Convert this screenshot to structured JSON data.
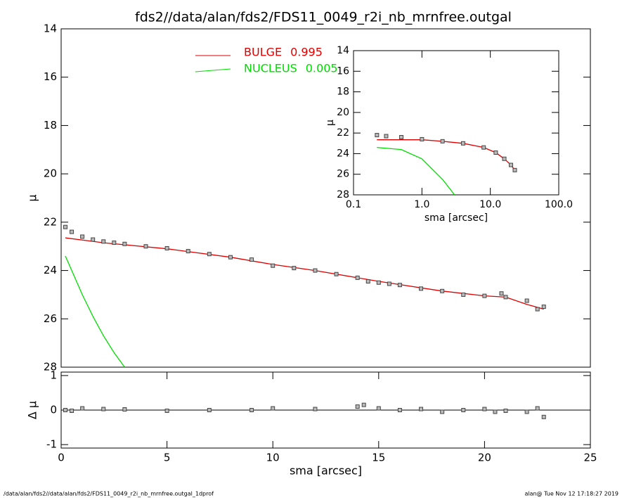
{
  "chart_data": [
    {
      "type": "line",
      "title": "fds2//data/alan/fds2/FDS11_0049_r2i_nb_mrnfree.outgal",
      "y_label": "μ",
      "xlim": [
        0,
        25
      ],
      "ylim": [
        28,
        14
      ],
      "yticks": [
        14,
        16,
        18,
        20,
        22,
        24,
        26,
        28
      ],
      "series": [
        {
          "name": "BULGE",
          "fraction": 0.995,
          "fraction_label": "0.995",
          "color": "#e00000",
          "style": "line",
          "x": [
            0.2,
            2,
            5,
            8,
            10,
            12,
            15,
            18,
            20,
            21,
            22,
            22.8
          ],
          "values": [
            22.65,
            22.85,
            23.1,
            23.45,
            23.75,
            24.0,
            24.45,
            24.85,
            25.05,
            25.1,
            25.4,
            25.6
          ]
        },
        {
          "name": "NUCLEUS",
          "fraction": 0.005,
          "fraction_label": "0.005",
          "color": "#00dd00",
          "style": "line",
          "x": [
            0.2,
            0.5,
            1,
            1.5,
            2,
            2.5,
            3
          ],
          "values": [
            23.4,
            24.0,
            25.0,
            25.9,
            26.7,
            27.4,
            28.0
          ]
        },
        {
          "color": "#444444",
          "style": "markers",
          "x": [
            0.2,
            0.5,
            1,
            1.5,
            2,
            2.5,
            3,
            4,
            5,
            6,
            7,
            8,
            9,
            10,
            11,
            12,
            13,
            14,
            14.5,
            15,
            15.5,
            16,
            17,
            18,
            19,
            20,
            20.8,
            21,
            22,
            22.5,
            22.8
          ],
          "values": [
            22.2,
            22.4,
            22.6,
            22.72,
            22.8,
            22.85,
            22.9,
            23.0,
            23.08,
            23.2,
            23.32,
            23.45,
            23.55,
            23.8,
            23.9,
            24.0,
            24.15,
            24.3,
            24.45,
            24.5,
            24.55,
            24.6,
            24.75,
            24.85,
            25.0,
            25.05,
            24.95,
            25.1,
            25.25,
            25.6,
            25.5
          ]
        }
      ]
    },
    {
      "type": "scatter",
      "x_label": "sma [arcsec]",
      "y_label": "Δ μ",
      "xlim": [
        0,
        25
      ],
      "xticks": [
        0,
        5,
        10,
        15,
        20,
        25
      ],
      "ylim": [
        -1.1,
        1.1
      ],
      "yticks": [
        -1,
        0,
        1
      ],
      "reference_line": 0,
      "series": [
        {
          "color": "#444444",
          "style": "markers",
          "x": [
            0.2,
            0.5,
            1,
            2,
            3,
            5,
            7,
            9,
            10,
            12,
            14,
            14.3,
            15,
            16,
            17,
            18,
            19,
            20,
            20.5,
            21,
            22,
            22.5,
            22.8
          ],
          "values": [
            0,
            -0.02,
            0.05,
            0.03,
            0.02,
            -0.02,
            0,
            0,
            0.05,
            0.03,
            0.1,
            0.15,
            0.05,
            0,
            0.03,
            -0.05,
            0,
            0.03,
            -0.05,
            -0.02,
            -0.05,
            0.05,
            -0.2
          ]
        }
      ]
    },
    {
      "type": "line",
      "x_label": "sma [arcsec]",
      "y_label": "μ",
      "xscale": "log",
      "xlim": [
        0.1,
        100
      ],
      "xticks": [
        0.1,
        {
          "value": 1,
          "label": "1.0"
        },
        {
          "value": 10,
          "label": "10.0"
        },
        {
          "value": 100,
          "label": "100.0"
        }
      ],
      "ylim": [
        28,
        14
      ],
      "yticks": [
        14,
        16,
        18,
        20,
        22,
        24,
        26,
        28
      ],
      "series": [
        {
          "color": "#e00000",
          "style": "line",
          "x": [
            0.22,
            1,
            2,
            4,
            8,
            12,
            16,
            20,
            22.8
          ],
          "values": [
            22.65,
            22.65,
            22.8,
            23.0,
            23.4,
            23.9,
            24.5,
            25.1,
            25.6
          ]
        },
        {
          "color": "#00dd00",
          "style": "line",
          "x": [
            0.22,
            0.5,
            1,
            2,
            3
          ],
          "values": [
            23.4,
            23.6,
            24.5,
            26.5,
            28.0
          ]
        },
        {
          "color": "#444444",
          "style": "markers",
          "x": [
            0.22,
            0.3,
            0.5,
            1,
            2,
            4,
            8,
            12,
            16,
            20,
            22.8
          ],
          "values": [
            22.2,
            22.3,
            22.4,
            22.6,
            22.8,
            23.0,
            23.4,
            23.9,
            24.5,
            25.1,
            25.6
          ]
        }
      ]
    }
  ],
  "footer": {
    "left": "/data/alan/fds2//data/alan/fds2/FDS11_0049_r2i_nb_mrnfree.outgal_1dprof",
    "right": "alan@  Tue Nov 12 17:18:27 2019"
  }
}
